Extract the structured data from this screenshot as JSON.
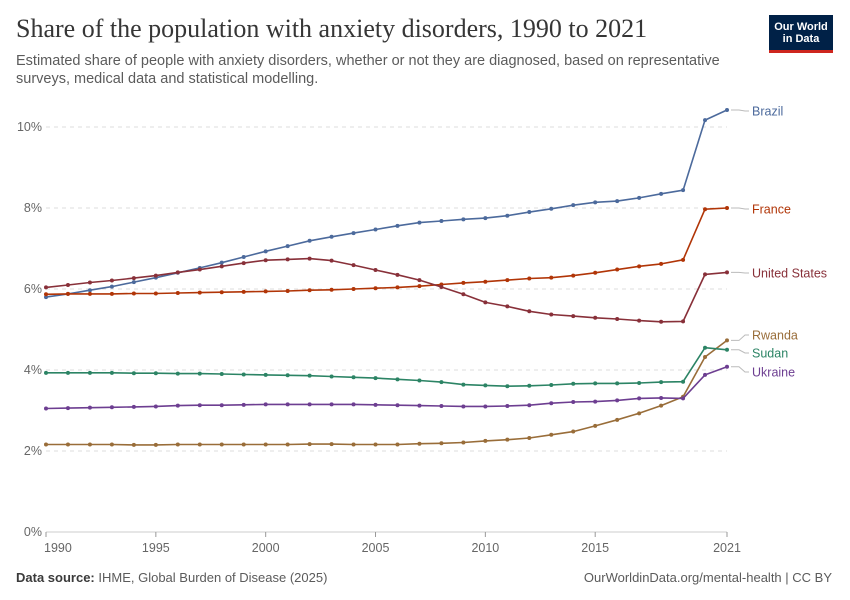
{
  "header": {
    "title": "Share of the population with anxiety disorders, 1990 to 2021",
    "subtitle": "Estimated share of people with anxiety disorders, whether or not they are diagnosed, based on representative surveys, medical data and statistical modelling."
  },
  "logo": {
    "line1": "Our World",
    "line2": "in Data",
    "bg_color": "#002147",
    "accent_color": "#ce261e"
  },
  "footer": {
    "source_label": "Data source:",
    "source_text": "IHME, Global Burden of Disease (2025)",
    "url_text": "OurWorldinData.org/mental-health | CC BY"
  },
  "chart_data": {
    "type": "line",
    "title": "Share of the population with anxiety disorders, 1990 to 2021",
    "xlabel": "",
    "ylabel": "",
    "xlim": [
      1990,
      2021
    ],
    "ylim": [
      0,
      10.5
    ],
    "x_ticks": [
      1990,
      1995,
      2000,
      2005,
      2010,
      2015,
      2021
    ],
    "y_ticks": [
      0,
      2,
      4,
      6,
      8,
      10
    ],
    "y_tick_labels": [
      "0%",
      "2%",
      "4%",
      "6%",
      "8%",
      "10%"
    ],
    "grid": "horizontal dashed",
    "legend": "right (line-end labels)",
    "x": [
      1990,
      1991,
      1992,
      1993,
      1994,
      1995,
      1996,
      1997,
      1998,
      1999,
      2000,
      2001,
      2002,
      2003,
      2004,
      2005,
      2006,
      2007,
      2008,
      2009,
      2010,
      2011,
      2012,
      2013,
      2014,
      2015,
      2016,
      2017,
      2018,
      2019,
      2020,
      2021
    ],
    "series": [
      {
        "name": "Brazil",
        "color": "#4c6a9c",
        "values": [
          5.8,
          5.88,
          5.97,
          6.06,
          6.17,
          6.28,
          6.4,
          6.52,
          6.65,
          6.79,
          6.93,
          7.06,
          7.19,
          7.29,
          7.38,
          7.47,
          7.56,
          7.64,
          7.68,
          7.72,
          7.75,
          7.81,
          7.9,
          7.98,
          8.07,
          8.14,
          8.17,
          8.25,
          8.35,
          8.44,
          10.17,
          10.42
        ]
      },
      {
        "name": "France",
        "color": "#b13507",
        "values": [
          5.87,
          5.88,
          5.88,
          5.88,
          5.89,
          5.89,
          5.9,
          5.91,
          5.92,
          5.93,
          5.94,
          5.95,
          5.97,
          5.98,
          6.0,
          6.02,
          6.04,
          6.07,
          6.11,
          6.15,
          6.18,
          6.22,
          6.26,
          6.28,
          6.33,
          6.4,
          6.48,
          6.56,
          6.62,
          6.72,
          7.97,
          8.0
        ]
      },
      {
        "name": "United States",
        "color": "#883039",
        "values": [
          6.04,
          6.1,
          6.16,
          6.21,
          6.27,
          6.33,
          6.41,
          6.48,
          6.56,
          6.64,
          6.71,
          6.73,
          6.75,
          6.7,
          6.59,
          6.47,
          6.35,
          6.22,
          6.05,
          5.87,
          5.67,
          5.57,
          5.45,
          5.37,
          5.33,
          5.29,
          5.26,
          5.22,
          5.19,
          5.2,
          6.36,
          6.41
        ]
      },
      {
        "name": "Rwanda",
        "color": "#996d39",
        "values": [
          2.16,
          2.16,
          2.16,
          2.16,
          2.15,
          2.15,
          2.16,
          2.16,
          2.16,
          2.16,
          2.16,
          2.16,
          2.17,
          2.17,
          2.16,
          2.16,
          2.16,
          2.18,
          2.19,
          2.21,
          2.25,
          2.28,
          2.32,
          2.4,
          2.48,
          2.62,
          2.77,
          2.93,
          3.12,
          3.34,
          4.32,
          4.73
        ]
      },
      {
        "name": "Sudan",
        "color": "#2c8465",
        "values": [
          3.93,
          3.93,
          3.93,
          3.93,
          3.92,
          3.92,
          3.91,
          3.91,
          3.9,
          3.89,
          3.88,
          3.87,
          3.86,
          3.84,
          3.82,
          3.8,
          3.77,
          3.74,
          3.7,
          3.64,
          3.62,
          3.6,
          3.61,
          3.63,
          3.66,
          3.67,
          3.67,
          3.68,
          3.7,
          3.71,
          4.55,
          4.5
        ]
      },
      {
        "name": "Ukraine",
        "color": "#6d3e91",
        "values": [
          3.05,
          3.06,
          3.07,
          3.08,
          3.09,
          3.1,
          3.12,
          3.13,
          3.13,
          3.14,
          3.15,
          3.15,
          3.15,
          3.15,
          3.15,
          3.14,
          3.13,
          3.12,
          3.11,
          3.1,
          3.1,
          3.11,
          3.13,
          3.18,
          3.21,
          3.22,
          3.25,
          3.3,
          3.31,
          3.3,
          3.88,
          4.08
        ]
      }
    ]
  }
}
